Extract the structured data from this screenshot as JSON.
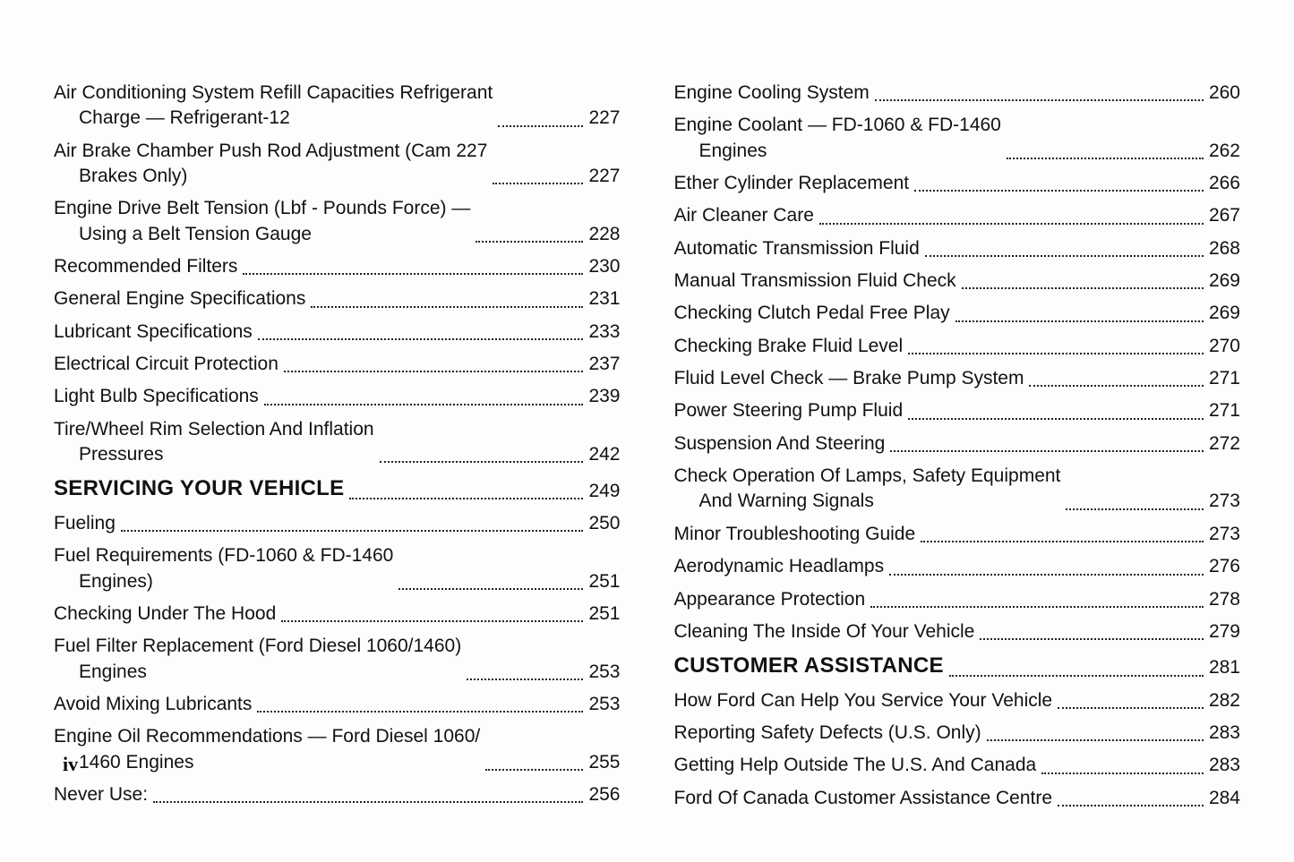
{
  "page_footer": "iv",
  "columns": [
    {
      "entries": [
        {
          "type": "item",
          "line1": "Air Conditioning System Refill Capacities Refrigerant",
          "line2": "Charge — Refrigerant-12",
          "page": "227"
        },
        {
          "type": "item",
          "line1": "Air Brake Chamber Push Rod Adjustment (Cam 227",
          "line2": "Brakes Only)",
          "page": "227"
        },
        {
          "type": "item",
          "line1": "Engine Drive Belt Tension (Lbf - Pounds Force) —",
          "line2": "Using a Belt Tension Gauge",
          "page": "228"
        },
        {
          "type": "item",
          "line1": "Recommended Filters",
          "page": "230"
        },
        {
          "type": "item",
          "line1": "General Engine Specifications",
          "page": "231"
        },
        {
          "type": "item",
          "line1": "Lubricant Specifications",
          "page": "233"
        },
        {
          "type": "item",
          "line1": "Electrical Circuit Protection",
          "page": "237"
        },
        {
          "type": "item",
          "line1": "Light Bulb Specifications",
          "page": "239"
        },
        {
          "type": "item",
          "line1": "Tire/Wheel Rim Selection And Inflation",
          "line2": "Pressures",
          "page": "242"
        },
        {
          "type": "section",
          "line1": "SERVICING YOUR VEHICLE",
          "page": "249"
        },
        {
          "type": "item",
          "line1": "Fueling",
          "page": "250"
        },
        {
          "type": "item",
          "line1": "Fuel Requirements (FD-1060 & FD-1460",
          "line2": "Engines)",
          "page": "251"
        },
        {
          "type": "item",
          "line1": "Checking Under The Hood",
          "page": "251"
        },
        {
          "type": "item",
          "line1": "Fuel Filter Replacement (Ford Diesel 1060/1460)",
          "line2": "Engines",
          "page": "253"
        },
        {
          "type": "item",
          "line1": "Avoid Mixing Lubricants",
          "page": "253"
        },
        {
          "type": "item",
          "line1": "Engine Oil Recommendations — Ford Diesel 1060/",
          "line2": "1460 Engines",
          "page": "255"
        },
        {
          "type": "item",
          "line1": "Never Use:",
          "page": "256"
        }
      ]
    },
    {
      "entries": [
        {
          "type": "item",
          "line1": "Engine Cooling System",
          "page": "260"
        },
        {
          "type": "item",
          "line1": "Engine Coolant — FD-1060 & FD-1460",
          "line2": "Engines",
          "page": "262"
        },
        {
          "type": "item",
          "line1": "Ether Cylinder Replacement",
          "page": "266"
        },
        {
          "type": "item",
          "line1": "Air Cleaner Care",
          "page": "267"
        },
        {
          "type": "item",
          "line1": "Automatic Transmission Fluid",
          "page": "268"
        },
        {
          "type": "item",
          "line1": "Manual Transmission Fluid Check",
          "page": "269"
        },
        {
          "type": "item",
          "line1": "Checking Clutch Pedal Free Play",
          "page": "269"
        },
        {
          "type": "item",
          "line1": "Checking Brake Fluid Level",
          "page": "270"
        },
        {
          "type": "item",
          "line1": "Fluid Level Check — Brake Pump System",
          "page": "271"
        },
        {
          "type": "item",
          "line1": "Power Steering Pump Fluid",
          "page": "271"
        },
        {
          "type": "item",
          "line1": "Suspension And Steering",
          "page": "272"
        },
        {
          "type": "item",
          "line1": "Check Operation Of Lamps, Safety Equipment",
          "line2": "And Warning Signals",
          "page": "273"
        },
        {
          "type": "item",
          "line1": "Minor Troubleshooting Guide",
          "page": "273"
        },
        {
          "type": "item",
          "line1": "Aerodynamic Headlamps",
          "page": "276"
        },
        {
          "type": "item",
          "line1": "Appearance Protection",
          "page": "278"
        },
        {
          "type": "item",
          "line1": "Cleaning The Inside Of Your Vehicle",
          "page": "279"
        },
        {
          "type": "section",
          "line1": "CUSTOMER ASSISTANCE",
          "page": "281"
        },
        {
          "type": "item",
          "line1": "How Ford Can Help You Service Your Vehicle",
          "page": "282"
        },
        {
          "type": "item",
          "line1": "Reporting Safety Defects (U.S. Only)",
          "page": "283"
        },
        {
          "type": "item",
          "line1": "Getting Help Outside The U.S. And Canada",
          "page": "283"
        },
        {
          "type": "item",
          "line1": "Ford Of Canada Customer Assistance Centre",
          "page": "284"
        }
      ]
    }
  ]
}
